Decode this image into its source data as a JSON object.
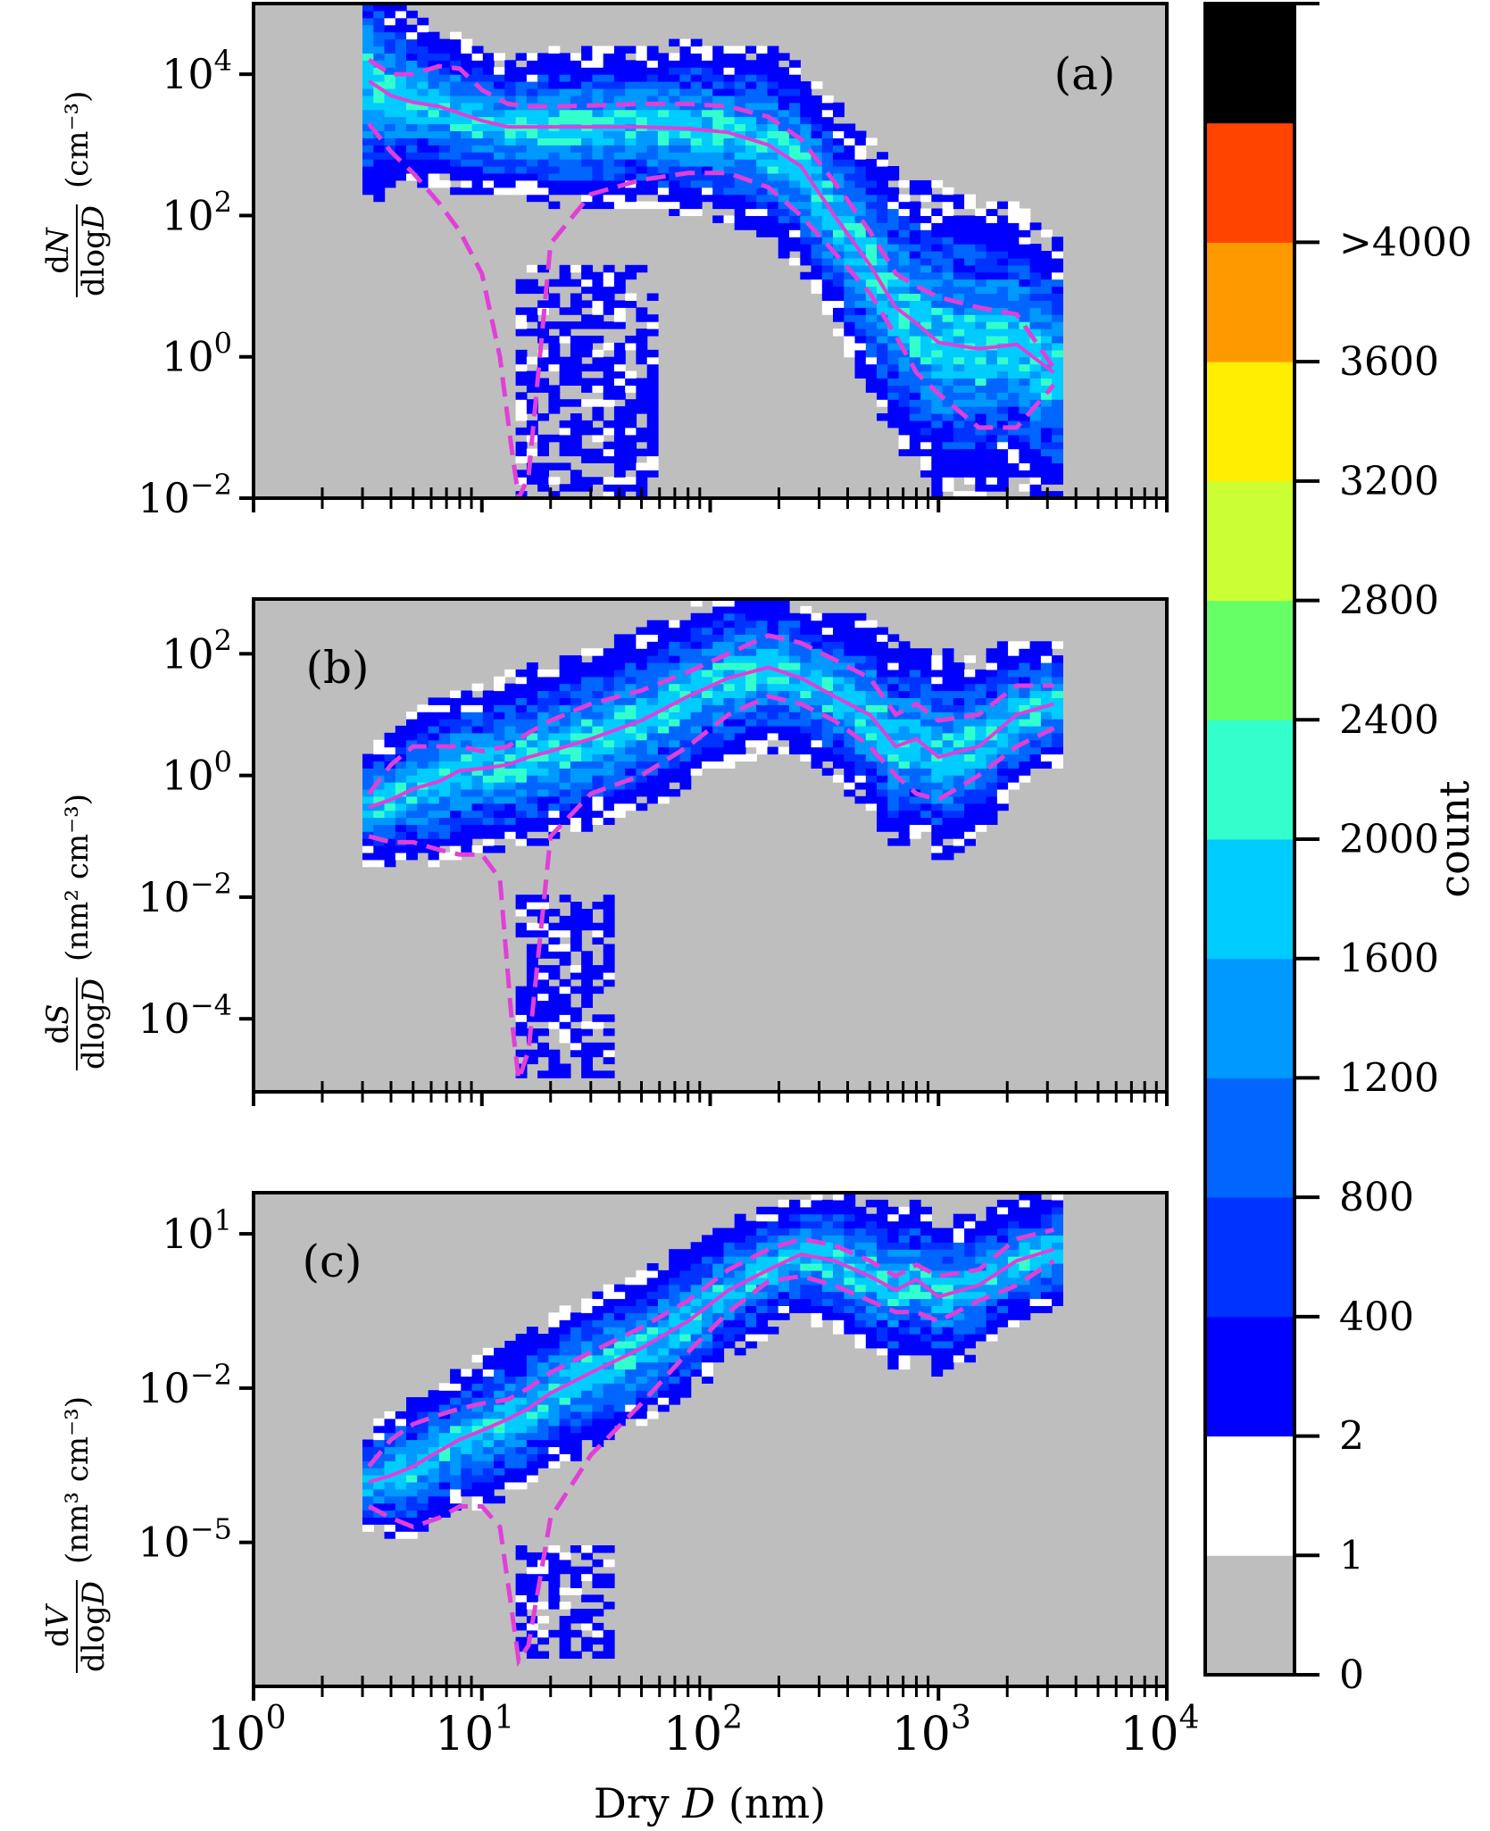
{
  "chart_data": [
    {
      "type": "heatmap",
      "panel_label": "(a)",
      "ylabel": {
        "num_d": "d",
        "num_var": "N",
        "den": "dlog",
        "den_var": "D",
        "unit": "(cm⁻³)"
      },
      "xlim": [
        1,
        10000
      ],
      "ylim_log10": [
        -2,
        5
      ],
      "xscale": "log",
      "yscale": "log",
      "y_ticks": [
        {
          "exp": "-2",
          "value": 0.01
        },
        {
          "exp": "0",
          "value": 1
        },
        {
          "exp": "2",
          "value": 100
        },
        {
          "exp": "4",
          "value": 10000
        }
      ],
      "median": {
        "x": [
          3.2,
          4,
          5,
          6.5,
          8,
          10,
          13,
          16,
          20,
          30,
          50,
          80,
          120,
          180,
          250,
          350,
          500,
          650,
          800,
          1000,
          1500,
          2200,
          3200
        ],
        "y": [
          8000,
          5000,
          4000,
          3500,
          2800,
          2200,
          1800,
          1800,
          1800,
          1800,
          1800,
          1700,
          1500,
          1000,
          500,
          100,
          20,
          5,
          3,
          1.6,
          1.3,
          1.5,
          0.6
        ]
      },
      "p_high": {
        "x": [
          3.2,
          4,
          5,
          6.5,
          8,
          10,
          13,
          16,
          20,
          30,
          50,
          80,
          120,
          180,
          250,
          350,
          500,
          650,
          800,
          1000,
          1500,
          2200,
          3200
        ],
        "y": [
          16000,
          10000,
          10000,
          13000,
          12000,
          6000,
          3800,
          3500,
          3500,
          3600,
          3800,
          3800,
          3500,
          2500,
          1200,
          300,
          60,
          15,
          10,
          7,
          5,
          4,
          0.7
        ]
      },
      "p_low": {
        "x": [
          3.2,
          4,
          5,
          6.5,
          8,
          10,
          12,
          13.5,
          14.5,
          16,
          20,
          30,
          50,
          80,
          120,
          180,
          250,
          350,
          500,
          650,
          800,
          1000,
          1500,
          2200,
          3200
        ],
        "y": [
          2000,
          800,
          400,
          150,
          60,
          15,
          1,
          0.05,
          0.01,
          0.02,
          40,
          200,
          320,
          400,
          400,
          250,
          100,
          30,
          8,
          2,
          0.6,
          0.3,
          0.1,
          0.1,
          0.4
        ]
      },
      "band_halfwidth_log10": [
        1.4,
        1.1,
        1.0,
        0.9,
        0.9,
        0.8,
        0.8,
        0.8,
        0.9,
        0.9,
        0.9,
        1.0,
        1.0,
        1.1,
        1.2,
        1.3,
        1.5,
        1.6,
        1.6,
        1.8,
        1.7,
        1.6,
        1.5
      ],
      "extra_clusters": [
        {
          "x": [
            14,
            60
          ],
          "y": [
            0.01,
            20
          ]
        },
        {
          "x": [
            35,
            60
          ],
          "y": [
            0.01,
            1
          ]
        }
      ]
    },
    {
      "type": "heatmap",
      "panel_label": "(b)",
      "ylabel": {
        "num_d": "d",
        "num_var": "S",
        "den": "dlog",
        "den_var": "D",
        "unit": "(nm² cm⁻³)"
      },
      "xlim": [
        1,
        10000
      ],
      "ylim_log10": [
        -5.2,
        2.9
      ],
      "xscale": "log",
      "yscale": "log",
      "y_ticks": [
        {
          "exp": "-4",
          "value": 0.0001
        },
        {
          "exp": "-2",
          "value": 0.01
        },
        {
          "exp": "0",
          "value": 1
        },
        {
          "exp": "2",
          "value": 100
        }
      ],
      "median": {
        "x": [
          3.2,
          4,
          5,
          6.5,
          8,
          10,
          13,
          16,
          20,
          30,
          50,
          80,
          120,
          180,
          250,
          350,
          500,
          650,
          800,
          1000,
          1500,
          2200,
          3200
        ],
        "y": [
          0.3,
          0.4,
          0.6,
          0.8,
          1.2,
          1.3,
          1.5,
          2,
          2.5,
          4,
          8,
          20,
          40,
          60,
          40,
          20,
          10,
          3,
          4,
          2,
          3,
          10,
          15
        ]
      },
      "p_high": {
        "x": [
          3.2,
          4,
          5,
          6.5,
          8,
          10,
          13,
          16,
          20,
          30,
          50,
          80,
          120,
          180,
          250,
          350,
          500,
          650,
          800,
          1000,
          1500,
          2200,
          3200
        ],
        "y": [
          0.5,
          1.5,
          3,
          3,
          3,
          2.5,
          3,
          5,
          8,
          15,
          25,
          50,
          100,
          200,
          150,
          80,
          40,
          10,
          15,
          8,
          10,
          30,
          30
        ]
      },
      "p_low": {
        "x": [
          3.2,
          4,
          5,
          6.5,
          8,
          10,
          12,
          13.5,
          14.5,
          16,
          20,
          30,
          50,
          80,
          120,
          180,
          250,
          350,
          500,
          650,
          800,
          1000,
          1500,
          2200,
          3200
        ],
        "y": [
          0.1,
          0.08,
          0.08,
          0.06,
          0.05,
          0.05,
          0.02,
          0.0001,
          1e-05,
          3e-05,
          0.1,
          0.5,
          1,
          3,
          10,
          20,
          15,
          8,
          3,
          1,
          0.5,
          0.4,
          1,
          3,
          6
        ]
      },
      "band_halfwidth_log10": [
        0.8,
        0.9,
        1.0,
        1.1,
        1.1,
        1.1,
        1.2,
        1.2,
        1.2,
        1.2,
        1.2,
        1.2,
        1.2,
        1.1,
        1.0,
        1.1,
        1.3,
        1.4,
        1.3,
        1.4,
        1.2,
        1.0,
        0.8
      ],
      "extra_clusters": [
        {
          "x": [
            14,
            40
          ],
          "y": [
            1e-05,
            0.01
          ]
        }
      ]
    },
    {
      "type": "heatmap",
      "panel_label": "(c)",
      "ylabel": {
        "num_d": "d",
        "num_var": "V",
        "den": "dlog",
        "den_var": "D",
        "unit": "(nm³ cm⁻³)"
      },
      "xlim": [
        1,
        10000
      ],
      "ylim_log10": [
        -7.8,
        1.8
      ],
      "xscale": "log",
      "yscale": "log",
      "y_ticks": [
        {
          "exp": "-5",
          "value": 1e-05
        },
        {
          "exp": "-2",
          "value": 0.01
        },
        {
          "exp": "1",
          "value": 10
        }
      ],
      "median": {
        "x": [
          3.2,
          4,
          5,
          6.5,
          8,
          10,
          13,
          16,
          20,
          30,
          50,
          80,
          120,
          180,
          250,
          350,
          500,
          650,
          800,
          1000,
          1500,
          2200,
          3200
        ],
        "y": [
          0.00015,
          0.0002,
          0.0003,
          0.0006,
          0.001,
          0.0015,
          0.0025,
          0.004,
          0.008,
          0.02,
          0.06,
          0.2,
          0.8,
          2,
          4,
          3,
          1.5,
          0.8,
          1.3,
          0.6,
          1,
          3,
          5
        ]
      },
      "p_high": {
        "x": [
          3.2,
          4,
          5,
          6.5,
          8,
          10,
          13,
          16,
          20,
          30,
          50,
          80,
          120,
          180,
          250,
          350,
          500,
          650,
          800,
          1000,
          1500,
          2200,
          3200
        ],
        "y": [
          0.0003,
          0.001,
          0.002,
          0.003,
          0.004,
          0.005,
          0.006,
          0.01,
          0.02,
          0.05,
          0.15,
          0.5,
          2,
          5,
          8,
          6,
          3,
          1.5,
          2.5,
          1.5,
          2,
          8,
          12
        ]
      },
      "p_low": {
        "x": [
          3.2,
          4,
          5,
          6.5,
          8,
          10,
          12,
          13.5,
          14.5,
          16,
          20,
          30,
          50,
          80,
          120,
          180,
          250,
          350,
          500,
          650,
          800,
          1000,
          1500,
          2200,
          3200
        ],
        "y": [
          5e-05,
          3e-05,
          2e-05,
          3e-05,
          5e-05,
          5e-05,
          2e-05,
          5e-07,
          5e-08,
          1e-07,
          3e-05,
          0.0005,
          0.005,
          0.05,
          0.3,
          1.2,
          1.5,
          1,
          0.5,
          0.3,
          0.3,
          0.2,
          0.5,
          1,
          3
        ]
      },
      "band_halfwidth_log10": [
        0.8,
        1.0,
        1.1,
        1.1,
        1.1,
        1.2,
        1.2,
        1.2,
        1.2,
        1.2,
        1.2,
        1.2,
        1.1,
        1.0,
        1.0,
        1.1,
        1.2,
        1.3,
        1.2,
        1.2,
        1.1,
        1.0,
        0.9
      ],
      "extra_clusters": [
        {
          "x": [
            14,
            40
          ],
          "y": [
            5e-08,
            1e-05
          ]
        }
      ]
    }
  ],
  "x_axis": {
    "label_prefix": "Dry ",
    "label_var": "D",
    "label_suffix": " (nm)",
    "ticks": [
      {
        "exp": "0",
        "value": 1
      },
      {
        "exp": "1",
        "value": 10
      },
      {
        "exp": "2",
        "value": 100
      },
      {
        "exp": "3",
        "value": 1000
      },
      {
        "exp": "4",
        "value": 10000
      }
    ]
  },
  "colorbar": {
    "label": "count",
    "tick_labels": [
      "0",
      "1",
      "2",
      "400",
      "800",
      "1200",
      "1600",
      "2000",
      "2400",
      "2800",
      "3200",
      "3600",
      ">4000"
    ],
    "colors": [
      "#bebebe",
      "#ffffff",
      "#0000ff",
      "#0033ff",
      "#0066ff",
      "#0099ff",
      "#00ccff",
      "#33ffcc",
      "#66ff66",
      "#ccff33",
      "#ffee00",
      "#ff9900",
      "#ff4400",
      "#000000"
    ]
  },
  "colors": {
    "background": "#bebebe",
    "median_line": "#e040d8",
    "percentile_line": "#e040d8",
    "dense_core": "#00ccff",
    "sparse": "#0000ff"
  }
}
